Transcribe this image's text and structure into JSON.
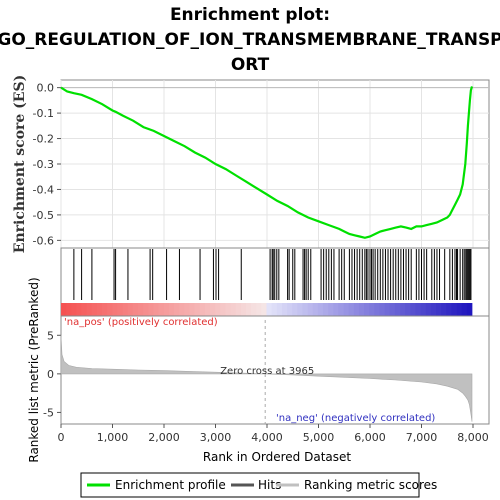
{
  "chart_data": {
    "type": "line",
    "title_line1": "Enrichment plot:",
    "title_line2": "GO_REGULATION_OF_ION_TRANSMEMBRANE_TRANSP",
    "title_line3": "ORT",
    "top_panel": {
      "ylabel": "Enrichment score (ES)",
      "ylim": [
        -0.63,
        0.03
      ],
      "yticks": [
        0.0,
        -0.1,
        -0.2,
        -0.3,
        -0.4,
        -0.5,
        -0.6
      ],
      "ytick_labels": [
        "0.0",
        "-0.1",
        "-0.2",
        "-0.3",
        "-0.4",
        "-0.5",
        "-0.6"
      ],
      "series": [
        {
          "name": "Enrichment profile",
          "color": "#00e000",
          "x": [
            0,
            120,
            250,
            400,
            600,
            800,
            1000,
            1060,
            1200,
            1400,
            1600,
            1800,
            2000,
            2200,
            2400,
            2600,
            2800,
            3000,
            3200,
            3400,
            3600,
            3800,
            4000,
            4200,
            4400,
            4600,
            4800,
            5000,
            5200,
            5400,
            5500,
            5600,
            5700,
            5800,
            5900,
            6000,
            6100,
            6200,
            6300,
            6400,
            6500,
            6600,
            6700,
            6800,
            6900,
            7000,
            7100,
            7200,
            7300,
            7400,
            7500,
            7550,
            7600,
            7650,
            7700,
            7750,
            7800,
            7850,
            7880,
            7900,
            7920,
            7940,
            7960,
            7980
          ],
          "values": [
            0.0,
            -0.015,
            -0.022,
            -0.028,
            -0.045,
            -0.065,
            -0.09,
            -0.095,
            -0.11,
            -0.13,
            -0.155,
            -0.17,
            -0.19,
            -0.21,
            -0.23,
            -0.255,
            -0.275,
            -0.3,
            -0.32,
            -0.345,
            -0.37,
            -0.395,
            -0.42,
            -0.445,
            -0.465,
            -0.49,
            -0.51,
            -0.525,
            -0.54,
            -0.555,
            -0.565,
            -0.575,
            -0.58,
            -0.585,
            -0.59,
            -0.585,
            -0.575,
            -0.565,
            -0.56,
            -0.555,
            -0.55,
            -0.545,
            -0.55,
            -0.555,
            -0.545,
            -0.545,
            -0.54,
            -0.535,
            -0.53,
            -0.52,
            -0.51,
            -0.5,
            -0.48,
            -0.46,
            -0.44,
            -0.42,
            -0.38,
            -0.3,
            -0.22,
            -0.15,
            -0.1,
            -0.05,
            -0.01,
            0.005
          ]
        }
      ]
    },
    "hits_panel": {
      "hit_positions": [
        250,
        400,
        600,
        1030,
        1060,
        1300,
        1730,
        1780,
        2050,
        2300,
        2700,
        2960,
        3010,
        3060,
        3500,
        4060,
        4100,
        4120,
        4150,
        4190,
        4230,
        4400,
        4430,
        4500,
        4540,
        4700,
        4730,
        4760,
        4800,
        4850,
        5050,
        5100,
        5150,
        5200,
        5250,
        5300,
        5400,
        5450,
        5500,
        5600,
        5650,
        5700,
        5750,
        5800,
        5850,
        5900,
        5930,
        5960,
        6000,
        6030,
        6060,
        6100,
        6150,
        6200,
        6250,
        6300,
        6350,
        6400,
        6450,
        6500,
        6550,
        6600,
        6650,
        6700,
        6750,
        6800,
        6900,
        6950,
        7000,
        7050,
        7100,
        7200,
        7250,
        7300,
        7350,
        7450,
        7550,
        7600,
        7650,
        7680,
        7700,
        7750,
        7800,
        7830,
        7860,
        7880,
        7900,
        7920,
        7940,
        7960
      ]
    },
    "bottom_panel": {
      "ylabel": "Ranked list metric (PreRanked)",
      "ylim": [
        -6.5,
        7.5
      ],
      "yticks": [
        5,
        0,
        -5
      ],
      "ytick_labels": [
        "5",
        "0",
        "-5"
      ],
      "metric_x": [
        0,
        20,
        60,
        150,
        300,
        600,
        1000,
        1500,
        2000,
        2500,
        3000,
        3500,
        3965,
        4500,
        5000,
        5500,
        6000,
        6500,
        7000,
        7300,
        7500,
        7700,
        7800,
        7850,
        7900,
        7930,
        7960,
        7980
      ],
      "metric_y": [
        5.0,
        2.5,
        1.6,
        1.1,
        0.85,
        0.7,
        0.6,
        0.5,
        0.42,
        0.32,
        0.22,
        0.1,
        0.0,
        -0.15,
        -0.3,
        -0.45,
        -0.6,
        -0.8,
        -1.05,
        -1.3,
        -1.6,
        -2.0,
        -2.5,
        -2.9,
        -3.4,
        -4.0,
        -5.2,
        -6.2
      ],
      "zero_cross_label": "Zero cross at 3965",
      "zero_cross": 3965,
      "pos_label": "'na_pos' (positively correlated)",
      "neg_label": "'na_neg' (negatively correlated)"
    },
    "xlabel": "Rank in Ordered Dataset",
    "xlim": [
      0,
      8000
    ],
    "xticks": [
      0,
      1000,
      2000,
      3000,
      4000,
      5000,
      6000,
      7000,
      8000
    ],
    "xtick_labels": [
      "0",
      "1,000",
      "2,000",
      "3,000",
      "4,000",
      "5,000",
      "6,000",
      "7,000",
      "8,000"
    ],
    "legend": [
      {
        "name": "Enrichment profile",
        "color": "#00e000"
      },
      {
        "name": "Hits",
        "color": "#555555"
      },
      {
        "name": "Ranking metric scores",
        "color": "#c0c0c0"
      }
    ],
    "colors": {
      "es_line": "#00e000",
      "hit_line": "#000000",
      "metric_fill": "#c0c0c0",
      "pos_text": "#e03030",
      "neg_text": "#3030c0"
    }
  }
}
